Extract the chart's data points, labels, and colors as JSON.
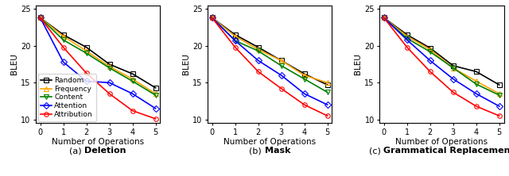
{
  "x": [
    0,
    1,
    2,
    3,
    4,
    5
  ],
  "deletion": {
    "Random": [
      23.8,
      21.5,
      19.8,
      17.5,
      16.2,
      14.3
    ],
    "Frequency": [
      23.8,
      21.3,
      19.3,
      17.2,
      15.5,
      13.5
    ],
    "Content": [
      23.8,
      20.8,
      19.0,
      17.0,
      15.2,
      13.3
    ],
    "Attention": [
      23.8,
      17.8,
      15.2,
      15.0,
      13.5,
      11.5
    ],
    "Attribution": [
      23.8,
      19.8,
      16.3,
      13.5,
      11.2,
      10.1
    ]
  },
  "mask": {
    "Random": [
      23.8,
      21.5,
      19.8,
      18.0,
      16.2,
      14.7
    ],
    "Frequency": [
      23.8,
      21.3,
      19.5,
      18.0,
      16.0,
      15.0
    ],
    "Content": [
      23.8,
      20.7,
      19.3,
      17.3,
      15.5,
      13.7
    ],
    "Attention": [
      23.8,
      20.7,
      18.0,
      16.0,
      13.5,
      12.0
    ],
    "Attribution": [
      23.8,
      19.8,
      16.5,
      14.2,
      12.0,
      10.5
    ]
  },
  "grammatical": {
    "Random": [
      23.8,
      21.5,
      19.7,
      17.3,
      16.5,
      14.7
    ],
    "Frequency": [
      23.8,
      21.3,
      19.5,
      17.0,
      15.2,
      13.5
    ],
    "Content": [
      23.8,
      21.0,
      19.2,
      17.0,
      14.8,
      13.3
    ],
    "Attention": [
      23.8,
      20.8,
      18.0,
      15.5,
      13.5,
      11.8
    ],
    "Attribution": [
      23.8,
      19.8,
      16.5,
      13.7,
      11.8,
      10.5
    ]
  },
  "series_styles": {
    "Random": {
      "color": "black",
      "marker": "s"
    },
    "Frequency": {
      "color": "orange",
      "marker": "^"
    },
    "Content": {
      "color": "green",
      "marker": "v"
    },
    "Attention": {
      "color": "blue",
      "marker": "D"
    },
    "Attribution": {
      "color": "red",
      "marker": "o"
    }
  },
  "ylim": [
    9.5,
    25.5
  ],
  "yticks": [
    10,
    15,
    20,
    25
  ],
  "xlim": [
    -0.2,
    5.2
  ],
  "xticks": [
    0,
    1,
    2,
    3,
    4,
    5
  ],
  "ylabel": "BLEU",
  "xlabel": "Number of Operations",
  "subplot_prefixes": [
    "(a) ",
    "(b) ",
    "(c) "
  ],
  "subplot_bold": [
    "Deletion",
    "Mask",
    "Grammatical Replacement"
  ],
  "linewidth": 1.2,
  "markersize": 4,
  "legend_fontsize": 6.5,
  "tick_fontsize": 7,
  "label_fontsize": 7.5,
  "title_fontsize": 8
}
